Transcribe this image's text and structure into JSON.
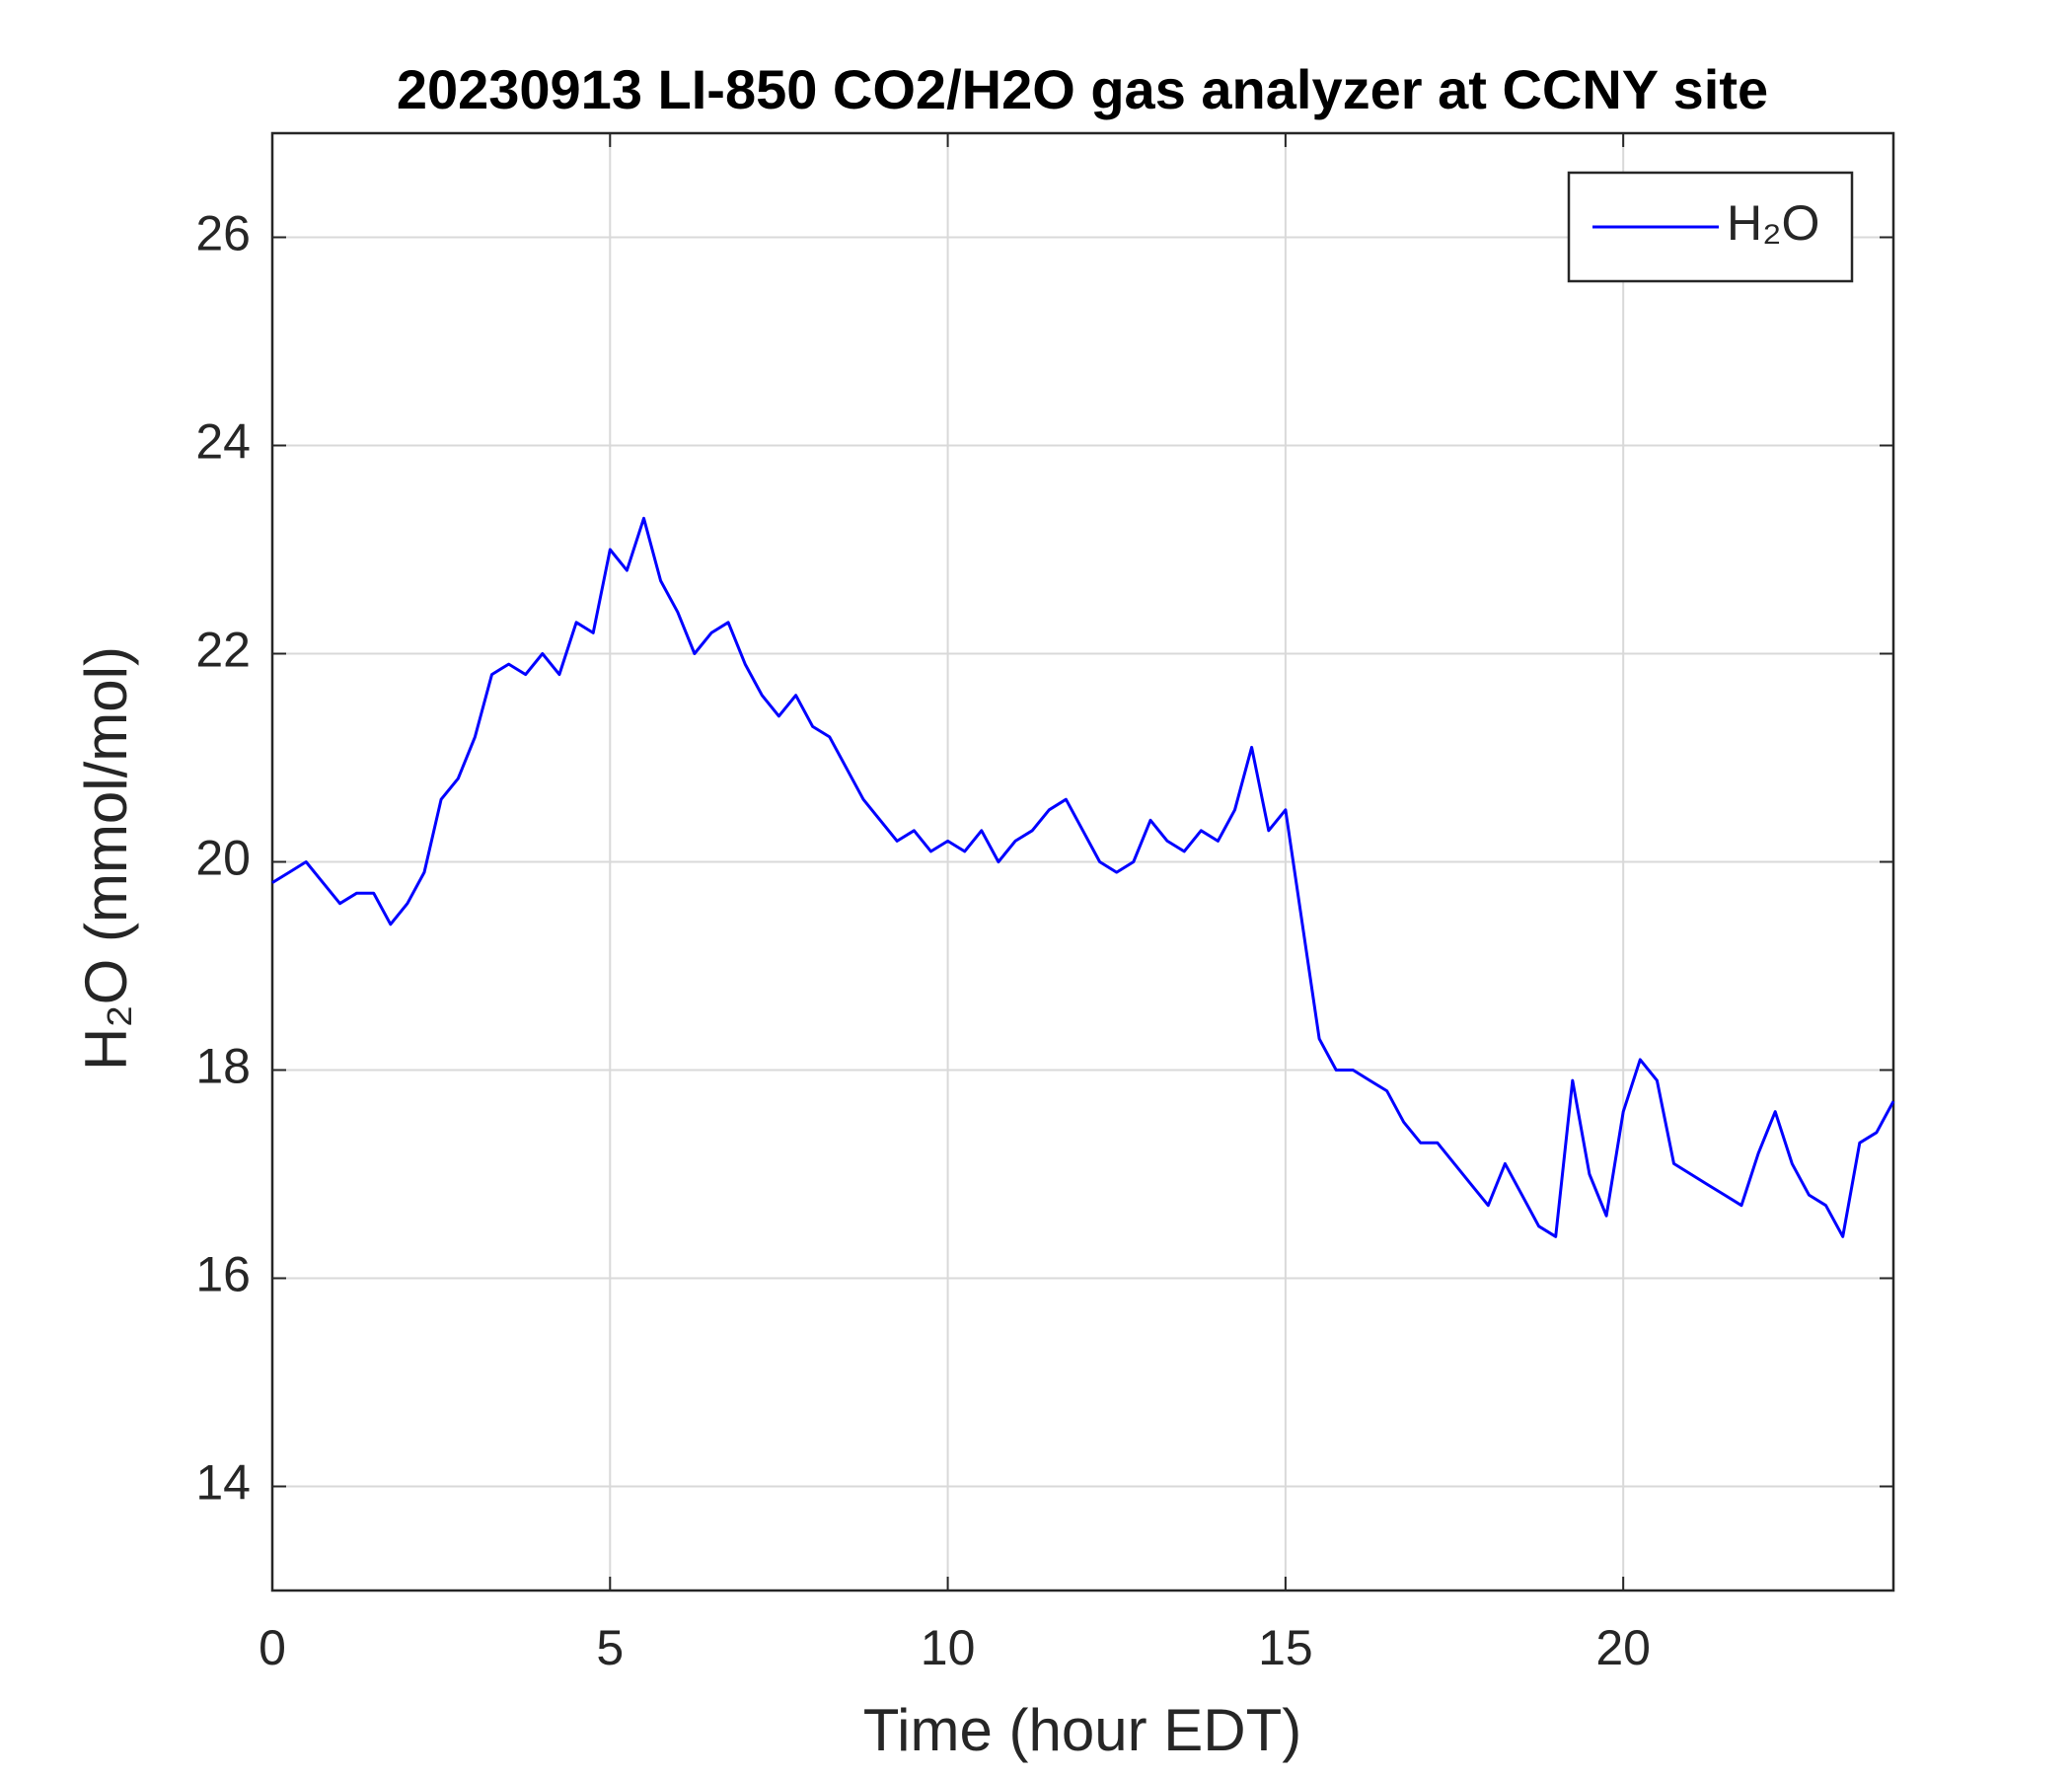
{
  "chart_data": {
    "type": "line",
    "title": "20230913 LI-850 CO2/H2O gas analyzer at CCNY site",
    "x_label": "Time (hour EDT)",
    "y_label": "H₂O (mmol/mol)",
    "xlim": [
      0,
      24
    ],
    "ylim": [
      13,
      27
    ],
    "xticks": [
      0,
      5,
      10,
      15,
      20
    ],
    "yticks": [
      14,
      16,
      18,
      20,
      22,
      24,
      26
    ],
    "grid": true,
    "legend": "top-right",
    "x": [
      0,
      0.25,
      0.5,
      0.75,
      1,
      1.25,
      1.5,
      1.75,
      2,
      2.25,
      2.5,
      2.75,
      3,
      3.25,
      3.5,
      3.75,
      4,
      4.25,
      4.5,
      4.75,
      5,
      5.25,
      5.5,
      5.75,
      6,
      6.25,
      6.5,
      6.75,
      7,
      7.25,
      7.5,
      7.75,
      8,
      8.25,
      8.5,
      8.75,
      9,
      9.25,
      9.5,
      9.75,
      10,
      10.25,
      10.5,
      10.75,
      11,
      11.25,
      11.5,
      11.75,
      12,
      12.25,
      12.5,
      12.75,
      13,
      13.25,
      13.5,
      13.75,
      14,
      14.25,
      14.5,
      14.75,
      15,
      15.25,
      15.5,
      15.75,
      16,
      16.25,
      16.5,
      16.75,
      17,
      17.25,
      17.5,
      17.75,
      18,
      18.25,
      18.5,
      18.75,
      19,
      19.25,
      19.5,
      19.75,
      20,
      20.25,
      20.5,
      20.75,
      21,
      21.25,
      21.5,
      21.75,
      22,
      22.25,
      22.5,
      22.75,
      23,
      23.25,
      23.5,
      23.75,
      24
    ],
    "series": [
      {
        "name": "H₂O",
        "color": "#0000ff",
        "values": [
          19.8,
          19.9,
          20.0,
          19.8,
          19.6,
          19.7,
          19.7,
          19.4,
          19.6,
          19.9,
          20.6,
          20.8,
          21.2,
          21.8,
          21.9,
          21.8,
          22.0,
          21.8,
          22.3,
          22.2,
          23.0,
          22.8,
          23.3,
          22.7,
          22.4,
          22.0,
          22.2,
          22.3,
          21.9,
          21.6,
          21.4,
          21.6,
          21.3,
          21.2,
          20.9,
          20.6,
          20.4,
          20.2,
          20.3,
          20.1,
          20.2,
          20.1,
          20.3,
          20.0,
          20.2,
          20.3,
          20.5,
          20.6,
          20.3,
          20.0,
          19.9,
          20.0,
          20.4,
          20.2,
          20.1,
          20.3,
          20.2,
          20.5,
          21.1,
          20.3,
          20.5,
          19.4,
          18.3,
          18.0,
          18.0,
          17.9,
          17.8,
          17.5,
          17.3,
          17.3,
          17.1,
          16.9,
          16.7,
          17.1,
          16.8,
          16.5,
          16.4,
          17.9,
          17.0,
          16.6,
          17.6,
          18.1,
          17.9,
          17.1,
          17.0,
          16.9,
          16.8,
          16.7,
          17.2,
          17.6,
          17.1,
          16.8,
          16.7,
          16.4,
          17.3,
          17.4,
          17.7
        ]
      }
    ]
  }
}
